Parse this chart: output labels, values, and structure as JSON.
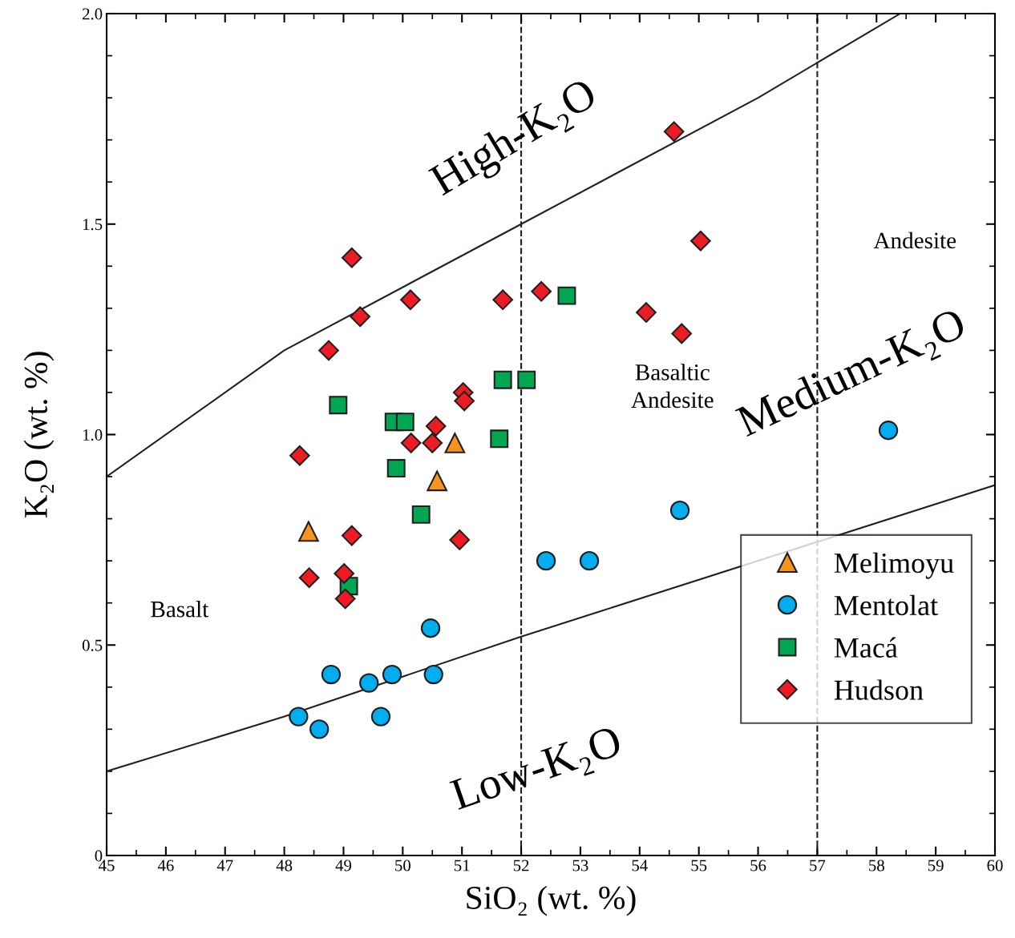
{
  "chart_data": {
    "type": "scatter",
    "xlabel": "SiO₂ (wt. %)",
    "ylabel": "K₂O (wt. %)",
    "xlim": [
      45,
      60
    ],
    "xticks": [
      45,
      46,
      47,
      48,
      49,
      50,
      51,
      52,
      53,
      54,
      55,
      56,
      57,
      58,
      59,
      60
    ],
    "ylim": [
      0,
      2
    ],
    "yticks": [
      {
        "value": 0,
        "label": "0"
      },
      {
        "value": 0.5,
        "label": "0.5"
      },
      {
        "value": 1.0,
        "label": "1.0"
      },
      {
        "value": 1.5,
        "label": "1.5"
      },
      {
        "value": 2.0,
        "label": "2.0"
      }
    ],
    "grid": false,
    "legend": "bottom right",
    "series": [
      {
        "name": "Melimoyu",
        "marker": "triangle",
        "color": "#f7941d",
        "x": [
          48.41,
          50.58,
          50.88
        ],
        "values": [
          0.77,
          0.89,
          0.98
        ]
      },
      {
        "name": "Mentolat",
        "marker": "circle",
        "color": "#00aeef",
        "x": [
          48.24,
          48.59,
          48.79,
          49.43,
          49.63,
          49.82,
          50.47,
          50.52,
          52.42,
          53.15,
          54.68,
          58.2
        ],
        "values": [
          0.33,
          0.3,
          0.43,
          0.41,
          0.33,
          0.43,
          0.54,
          0.43,
          0.7,
          0.7,
          0.82,
          1.01
        ]
      },
      {
        "name": "Macá",
        "marker": "square",
        "color": "#00a651",
        "x": [
          48.91,
          49.85,
          50.04,
          49.89,
          50.31,
          49.09,
          51.63,
          51.69,
          52.09,
          52.77
        ],
        "values": [
          1.07,
          1.03,
          1.03,
          0.92,
          0.81,
          0.64,
          0.99,
          1.13,
          1.13,
          1.33
        ]
      },
      {
        "name": "Hudson",
        "marker": "diamond",
        "color": "#ed1c24",
        "x": [
          48.26,
          49.14,
          49.28,
          48.75,
          50.13,
          51.69,
          52.34,
          54.58,
          55.03,
          54.11,
          54.71,
          51.02,
          51.04,
          50.56,
          50.14,
          50.5,
          49.14,
          50.96,
          48.42,
          49.01,
          49.03
        ],
        "values": [
          0.95,
          1.42,
          1.28,
          1.2,
          1.32,
          1.32,
          1.34,
          1.72,
          1.46,
          1.29,
          1.24,
          1.1,
          1.08,
          1.02,
          0.98,
          0.98,
          0.76,
          0.75,
          0.66,
          0.67,
          0.61
        ]
      },
      {
        "type": "line",
        "marker": "none",
        "line_style": "solid",
        "color": "#231f20",
        "x": [
          45,
          48,
          52,
          56,
          58.4
        ],
        "values": [
          0.9,
          1.2,
          1.5,
          1.8,
          2.0
        ]
      },
      {
        "type": "line",
        "marker": "none",
        "line_style": "solid",
        "color": "#231f20",
        "x": [
          45,
          48,
          52,
          60
        ],
        "values": [
          0.2,
          0.33,
          0.52,
          0.88
        ]
      }
    ],
    "ref_lines": [
      {
        "axis": "x",
        "value": 52,
        "line_style": "dashed",
        "color": "#231f20"
      },
      {
        "axis": "x",
        "value": 57,
        "line_style": "dashed",
        "color": "#231f20"
      }
    ],
    "annotations": [
      "High-K₂O",
      "Medium-K₂O",
      "Low-K₂O",
      "Basalt",
      "Basaltic\nAndesite",
      "Andesite"
    ]
  }
}
